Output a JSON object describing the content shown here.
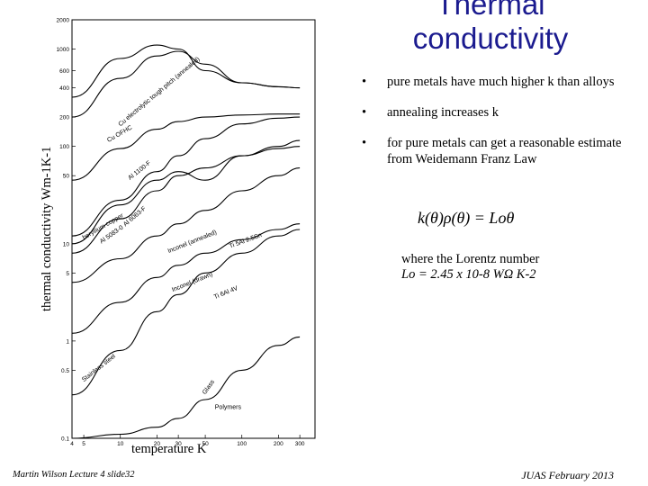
{
  "slide": {
    "title": "Thermal conductivity",
    "bullets": [
      "pure metals have much higher k than alloys",
      "annealing increases k",
      "for pure metals can get a reasonable estimate from Weidemann Franz Law"
    ],
    "bullet_symbol": "•",
    "formula": "k(θ)ρ(θ) = Loθ",
    "lorentz_line1": "where the Lorentz number",
    "lorentz_line2": "Lo = 2.45 x 10-8 WΩ K-2",
    "footer_left": "Martin Wilson Lecture 4 slide32",
    "footer_right": "JUAS February 2013"
  },
  "chart_data": {
    "type": "line",
    "xlabel": "temperature K",
    "ylabel": "thermal conductivity Wm-1K-1",
    "x_scale": "log",
    "y_scale": "log",
    "xlim": [
      4,
      400
    ],
    "ylim": [
      0.1,
      2000
    ],
    "x_ticks": [
      "4",
      "5",
      "10",
      "20",
      "30",
      "50",
      "100",
      "200",
      "300"
    ],
    "y_ticks": [
      "2000",
      "1000",
      "600",
      "400",
      "200",
      "100",
      "50",
      "10",
      "5",
      "1",
      "0.5",
      "0.1"
    ],
    "series": [
      {
        "name": "Cu electrolytic tough pitch (annealed)",
        "x": [
          4,
          10,
          20,
          30,
          50,
          100,
          200,
          300
        ],
        "y": [
          320,
          800,
          1100,
          1000,
          600,
          450,
          410,
          400
        ]
      },
      {
        "name": "Cu OFHC",
        "x": [
          4,
          10,
          20,
          30,
          50,
          100,
          200,
          300
        ],
        "y": [
          200,
          500,
          850,
          950,
          700,
          450,
          410,
          400
        ]
      },
      {
        "name": "Al 1100-F",
        "x": [
          4,
          10,
          20,
          30,
          50,
          100,
          200,
          300
        ],
        "y": [
          45,
          95,
          150,
          180,
          200,
          210,
          215,
          215
        ]
      },
      {
        "name": "Al 6063-F",
        "x": [
          4,
          10,
          20,
          30,
          50,
          100,
          200,
          300
        ],
        "y": [
          12,
          28,
          55,
          80,
          120,
          170,
          195,
          200
        ]
      },
      {
        "name": "beryllium copper",
        "x": [
          4,
          10,
          20,
          30,
          50,
          100,
          200,
          300
        ],
        "y": [
          10,
          25,
          45,
          55,
          45,
          80,
          95,
          100
        ]
      },
      {
        "name": "Al 5083-0",
        "x": [
          4,
          10,
          20,
          30,
          50,
          100,
          200,
          300
        ],
        "y": [
          8,
          18,
          35,
          50,
          60,
          80,
          100,
          115
        ]
      },
      {
        "name": "Inconel (annealed)",
        "x": [
          4,
          10,
          20,
          30,
          50,
          100,
          200,
          300
        ],
        "y": [
          4,
          7,
          12,
          16,
          22,
          35,
          50,
          60
        ]
      },
      {
        "name": "Inconel (drawn)",
        "x": [
          4,
          10,
          20,
          30,
          50,
          100,
          200,
          300
        ],
        "y": [
          1.2,
          2.5,
          4.5,
          6,
          8,
          11,
          14,
          16
        ]
      },
      {
        "name": "Stainless steel",
        "x": [
          4,
          10,
          20,
          30,
          50,
          100,
          200,
          300
        ],
        "y": [
          0.28,
          0.8,
          2,
          3,
          5,
          8,
          12,
          14
        ]
      },
      {
        "name": "Glass",
        "x": [
          4,
          10,
          20,
          30,
          50,
          100,
          200,
          300
        ],
        "y": [
          0.1,
          0.11,
          0.13,
          0.16,
          0.25,
          0.5,
          0.9,
          1.1
        ]
      }
    ],
    "annotations": [
      "Cu electrolytic tough pitch (annealed)",
      "Cu OFHC",
      "Al 1100-F",
      "Al 6063-F",
      "beryllium copper",
      "Al 5083-0",
      "Inconel (annealed)",
      "Inconel (drawn)",
      "Ti 5Al 2.5Sn",
      "Ti 6Al 4V",
      "Stainless steel",
      "Glass",
      "Polymers"
    ]
  }
}
